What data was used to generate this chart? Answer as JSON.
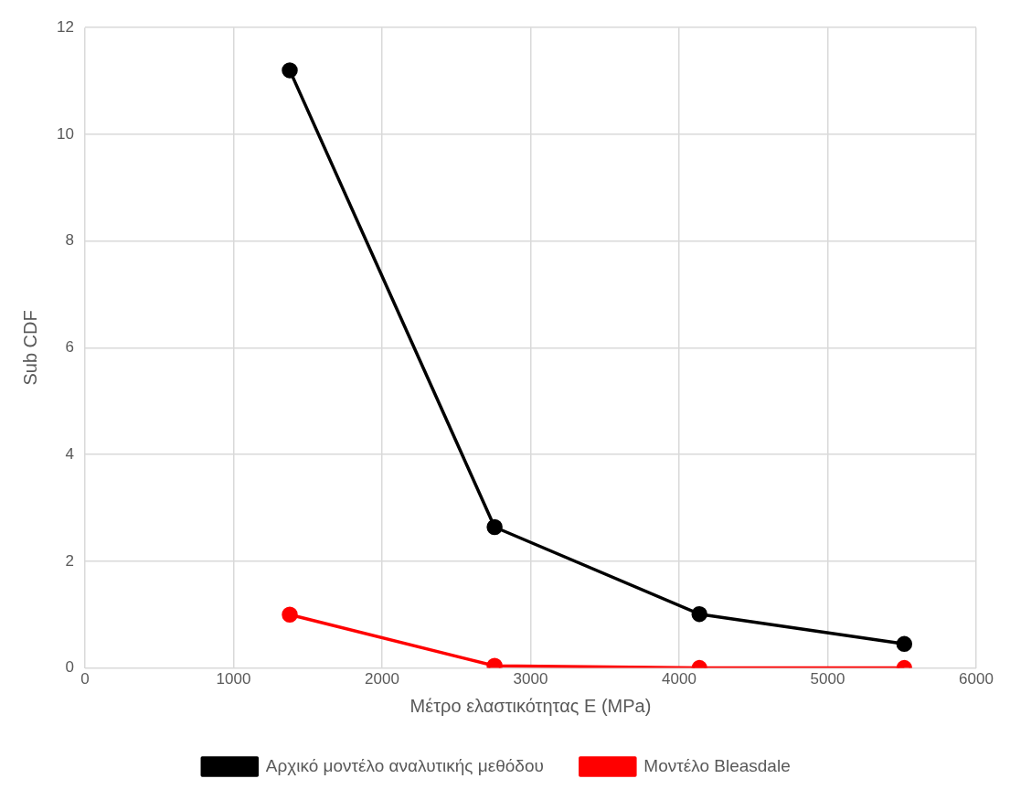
{
  "chart_data": {
    "type": "line",
    "xlabel": "Μέτρο ελαστικότητας Ε (MPa)",
    "ylabel": "Sub CDF",
    "xlim": [
      0,
      6000
    ],
    "xticks": [
      0,
      1000,
      2000,
      3000,
      4000,
      5000,
      6000
    ],
    "ylim": [
      0,
      12
    ],
    "yticks": [
      0,
      2,
      4,
      6,
      8,
      10,
      12
    ],
    "grid": true,
    "legend": "bottom",
    "marker": "circle",
    "line_style": "solid",
    "series": [
      {
        "name": "Αρχικό μοντέλο αναλυτικής μεθόδου",
        "color": "#000000",
        "x": [
          1379,
          2758,
          4137,
          5516
        ],
        "values": [
          11.2,
          2.64,
          1.01,
          0.45
        ]
      },
      {
        "name": "Μοντέλο Bleasdale",
        "color": "#ff0000",
        "x": [
          1379,
          2758,
          4137,
          5516
        ],
        "values": [
          1.0,
          0.04,
          0,
          0
        ]
      }
    ]
  }
}
